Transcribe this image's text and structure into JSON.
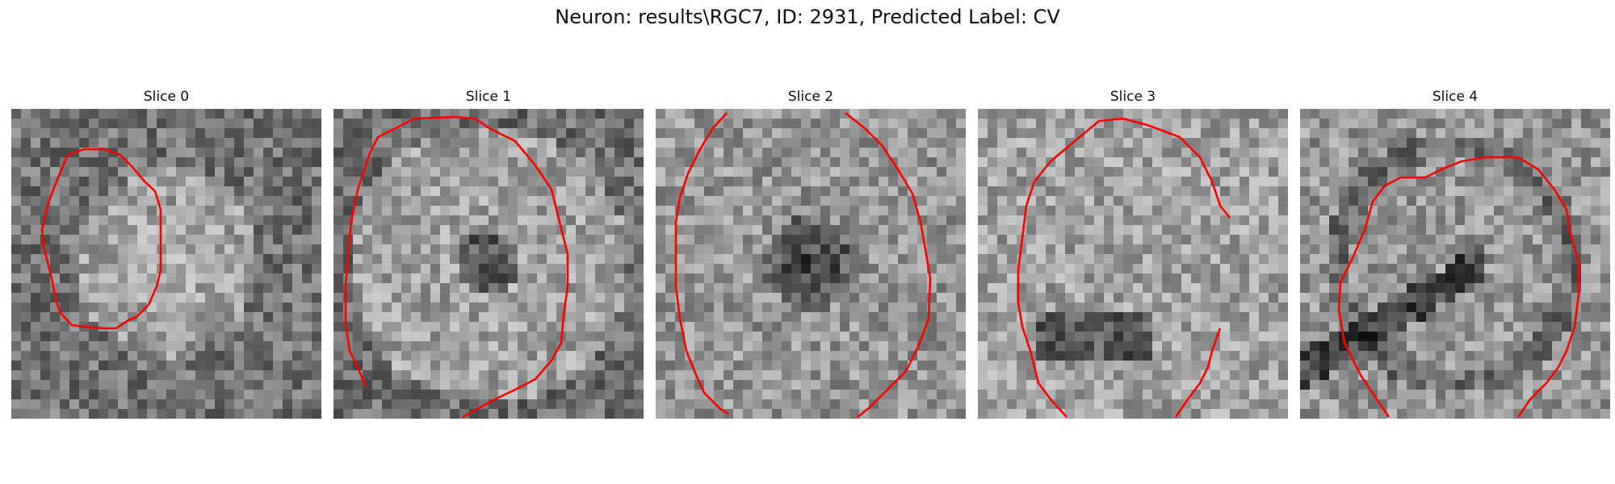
{
  "figure": {
    "title": "Neuron: results\\RGC7, ID: 2931, Predicted Label: CV"
  },
  "slices": [
    {
      "label": "Slice 0",
      "seed": 17,
      "bright": "center"
    },
    {
      "label": "Slice 1",
      "seed": 41,
      "bright": "ring-dark-center"
    },
    {
      "label": "Slice 2",
      "seed": 73,
      "bright": "dark-center"
    },
    {
      "label": "Slice 3",
      "seed": 97,
      "bright": "ring-dark-lower"
    },
    {
      "label": "Slice 4",
      "seed": 131,
      "bright": "dark-band"
    }
  ],
  "colors": {
    "contour": "#ff0000"
  }
}
